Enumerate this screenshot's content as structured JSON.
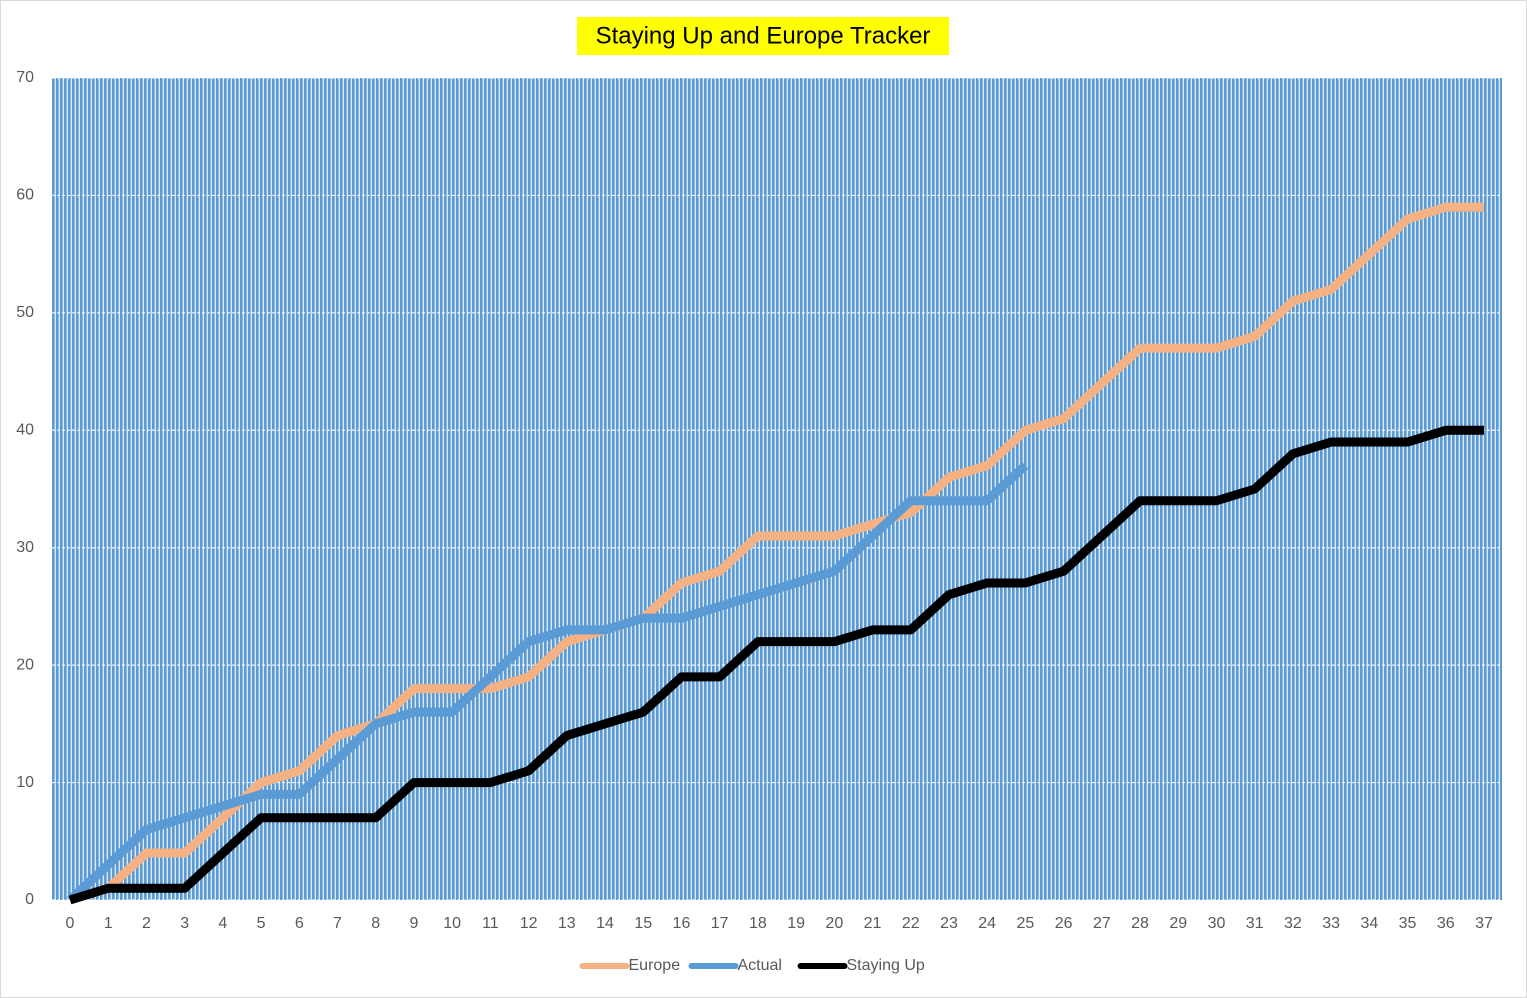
{
  "chart_data": {
    "type": "line",
    "title": "Staying Up and Europe Tracker",
    "x": [
      0,
      1,
      2,
      3,
      4,
      5,
      6,
      7,
      8,
      9,
      10,
      11,
      12,
      13,
      14,
      15,
      16,
      17,
      18,
      19,
      20,
      21,
      22,
      23,
      24,
      25,
      26,
      27,
      28,
      29,
      30,
      31,
      32,
      33,
      34,
      35,
      36,
      37
    ],
    "xlim": [
      0,
      37
    ],
    "ylim": [
      0,
      70
    ],
    "yticks": [
      0,
      10,
      20,
      30,
      40,
      50,
      60,
      70
    ],
    "grid": true,
    "legend": "bottom",
    "series": [
      {
        "name": "Europe",
        "color": "#f4b183",
        "values": [
          0,
          1,
          4,
          4,
          7,
          10,
          11,
          14,
          15,
          18,
          18,
          18,
          19,
          22,
          23,
          24,
          27,
          28,
          31,
          31,
          31,
          32,
          33,
          36,
          37,
          40,
          41,
          44,
          47,
          47,
          47,
          48,
          51,
          52,
          55,
          58,
          59,
          59
        ]
      },
      {
        "name": "Actual",
        "color": "#5b9bd5",
        "values": [
          0,
          3,
          6,
          7,
          8,
          9,
          9,
          12,
          15,
          16,
          16,
          19,
          22,
          23,
          23,
          24,
          24,
          25,
          26,
          27,
          28,
          31,
          34,
          34,
          34,
          37,
          null,
          null,
          null,
          null,
          null,
          null,
          null,
          null,
          null,
          null,
          null,
          null
        ]
      },
      {
        "name": "Staying Up",
        "color": "#000000",
        "values": [
          0,
          1,
          1,
          1,
          4,
          7,
          7,
          7,
          7,
          10,
          10,
          10,
          11,
          14,
          15,
          16,
          19,
          19,
          22,
          22,
          22,
          23,
          23,
          26,
          27,
          27,
          28,
          31,
          34,
          34,
          34,
          35,
          38,
          39,
          39,
          39,
          40,
          40
        ]
      }
    ]
  }
}
